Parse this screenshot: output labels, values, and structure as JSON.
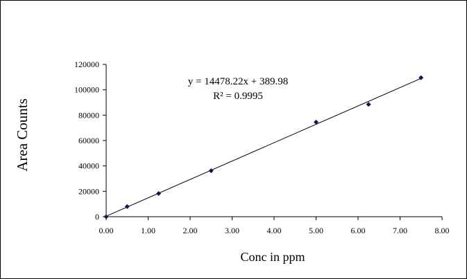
{
  "chart_data": {
    "type": "scatter",
    "xlabel": "Conc in ppm",
    "ylabel": "Area Counts",
    "xlim": [
      0,
      8
    ],
    "ylim": [
      0,
      120000
    ],
    "x_ticks": [
      "0.00",
      "1.00",
      "2.00",
      "3.00",
      "4.00",
      "5.00",
      "6.00",
      "7.00",
      "8.00"
    ],
    "y_ticks": [
      "0",
      "20000",
      "40000",
      "60000",
      "80000",
      "100000",
      "120000"
    ],
    "grid": false,
    "legend": "none",
    "series": [
      {
        "marker": "diamond",
        "color": "#0b1a4e",
        "points": [
          {
            "x": 0.0,
            "y": 0
          },
          {
            "x": 0.5,
            "y": 8000
          },
          {
            "x": 1.25,
            "y": 18300
          },
          {
            "x": 2.5,
            "y": 36200
          },
          {
            "x": 5.0,
            "y": 74500
          },
          {
            "x": 6.25,
            "y": 88500
          },
          {
            "x": 7.5,
            "y": 109500
          }
        ]
      }
    ],
    "trendline": {
      "type": "linear",
      "slope": 14478.22,
      "intercept": 389.98,
      "x_range": [
        0,
        7.5
      ],
      "color": "#000000"
    },
    "annotations": {
      "equation": "y = 14478.22x + 389.98",
      "r_squared": "R² = 0.9995"
    }
  }
}
